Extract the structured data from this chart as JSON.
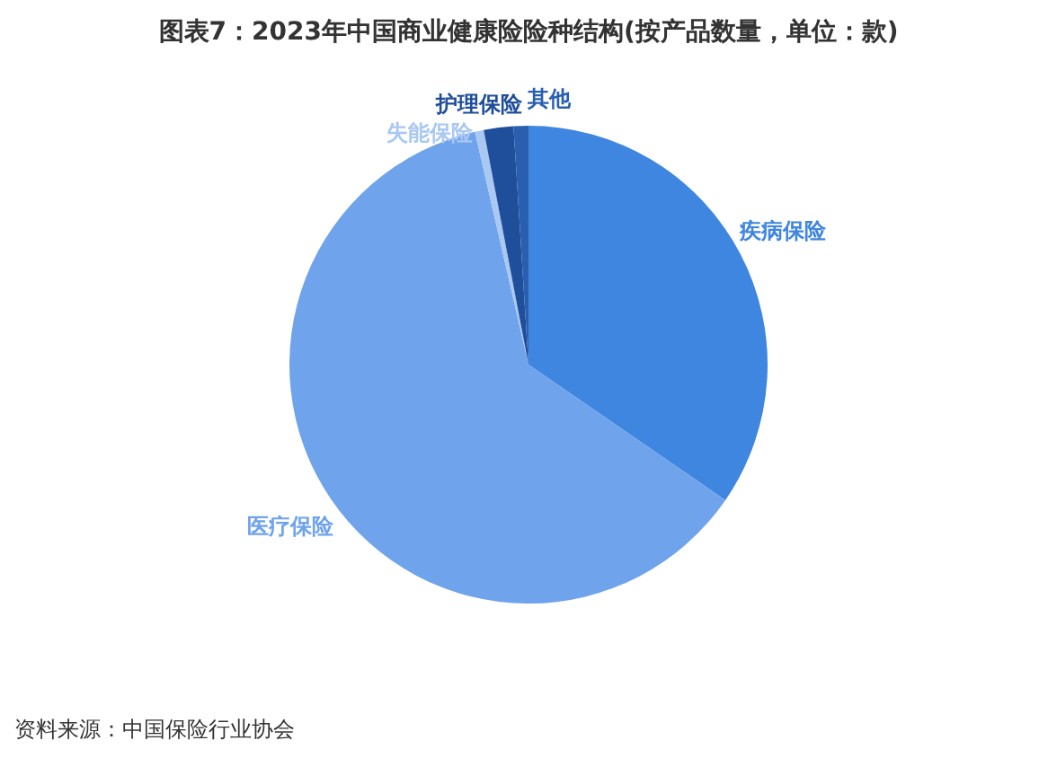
{
  "chart_data": {
    "type": "pie",
    "title": "图表7：2023年中国商业健康险险种结构(按产品数量，单位：款)",
    "categories": [
      "疾病保险",
      "医疗保险",
      "失能保险",
      "护理保险",
      "其他"
    ],
    "values": [
      34.6,
      61.8,
      0.6,
      2.0,
      1.0
    ],
    "colors": [
      "#3f86e0",
      "#6fa3ec",
      "#a9c8f2",
      "#1f4e9a",
      "#2a5fb0"
    ],
    "annotations": [
      "资料来源：中国保险行业协会"
    ]
  }
}
